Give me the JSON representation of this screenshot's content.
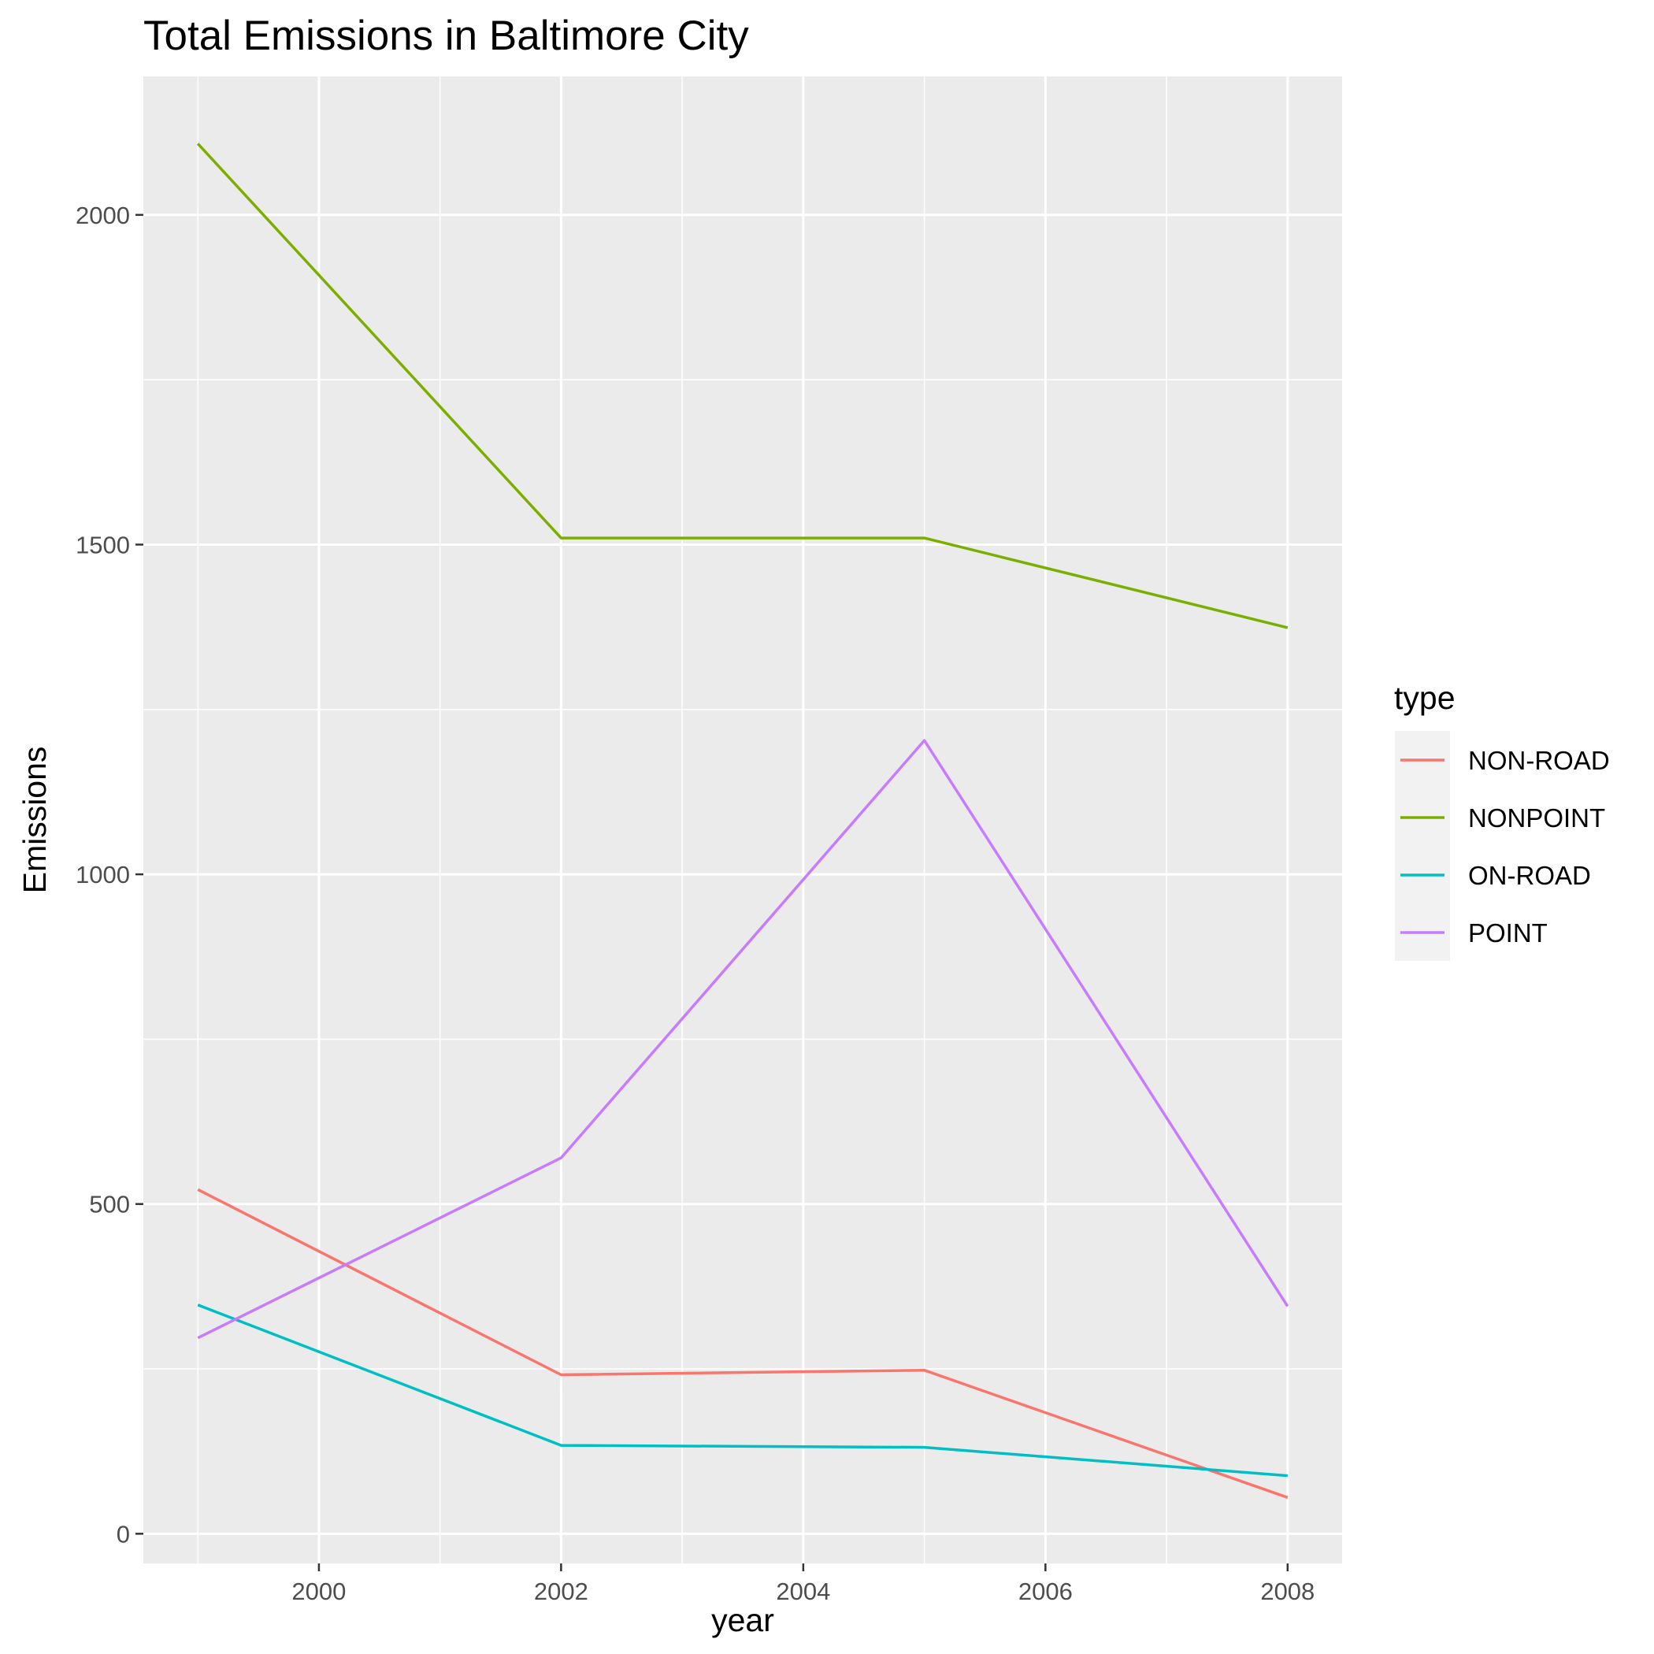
{
  "chart_data": {
    "type": "line",
    "title": "Total Emissions in Baltimore City",
    "xlabel": "year",
    "ylabel": "Emissions",
    "x": [
      1999,
      2002,
      2005,
      2008
    ],
    "xlim": [
      1998.55,
      2008.45
    ],
    "ylim": [
      -45,
      2210
    ],
    "xticks": [
      2000,
      2002,
      2004,
      2006,
      2008
    ],
    "yticks": [
      0,
      500,
      1000,
      1500,
      2000
    ],
    "grid": true,
    "legend": {
      "title": "type",
      "position": "right"
    },
    "background": "#ebebeb",
    "series": [
      {
        "name": "NON-ROAD",
        "color": "#F8766D",
        "values": [
          522,
          241,
          248,
          55
        ]
      },
      {
        "name": "NONPOINT",
        "color": "#7CAE00",
        "values": [
          2108,
          1510,
          1510,
          1374
        ]
      },
      {
        "name": "ON-ROAD",
        "color": "#00BFC4",
        "values": [
          347,
          134,
          131,
          88
        ]
      },
      {
        "name": "POINT",
        "color": "#C77CFF",
        "values": [
          297,
          570,
          1203,
          345
        ]
      }
    ]
  }
}
